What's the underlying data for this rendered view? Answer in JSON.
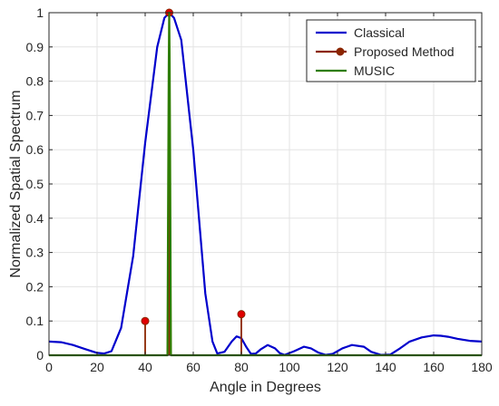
{
  "chart_data": {
    "type": "line",
    "xlabel": "Angle in Degrees",
    "ylabel": "Normalized Spatial Spectrum",
    "xlim": [
      0,
      180
    ],
    "ylim": [
      0,
      1
    ],
    "xticks": [
      "0",
      "20",
      "40",
      "60",
      "80",
      "100",
      "120",
      "140",
      "160",
      "180"
    ],
    "yticks": [
      "0",
      "0.1",
      "0.2",
      "0.3",
      "0.4",
      "0.5",
      "0.6",
      "0.7",
      "0.8",
      "0.9",
      "1"
    ],
    "grid": true,
    "legend_position": "top-right",
    "series": [
      {
        "name": "Classical",
        "kind": "line",
        "color": "#0000cc",
        "x": [
          0,
          5,
          10,
          15,
          20,
          23,
          26,
          30,
          35,
          40,
          45,
          48,
          50,
          52,
          55,
          60,
          65,
          68,
          70,
          73,
          76,
          78,
          80,
          82,
          84,
          86,
          88,
          91,
          94,
          96,
          98,
          102,
          106,
          109,
          112,
          115,
          118,
          122,
          126,
          131,
          134,
          138,
          142,
          146,
          150,
          155,
          160,
          163,
          166,
          170,
          175,
          180
        ],
        "y": [
          0.04,
          0.038,
          0.03,
          0.018,
          0.007,
          0.005,
          0.012,
          0.08,
          0.29,
          0.62,
          0.9,
          0.985,
          1.0,
          0.985,
          0.92,
          0.6,
          0.18,
          0.04,
          0.005,
          0.01,
          0.04,
          0.055,
          0.05,
          0.025,
          0.004,
          0.005,
          0.017,
          0.03,
          0.02,
          0.006,
          0.001,
          0.012,
          0.025,
          0.02,
          0.008,
          0.001,
          0.004,
          0.02,
          0.03,
          0.025,
          0.01,
          0.001,
          0.002,
          0.02,
          0.04,
          0.052,
          0.058,
          0.057,
          0.054,
          0.048,
          0.042,
          0.04
        ]
      },
      {
        "name": "Proposed Method",
        "kind": "stem",
        "color": "#8b2500",
        "x": [
          40,
          50,
          80
        ],
        "y": [
          0.1,
          1.0,
          0.12
        ]
      },
      {
        "name": "MUSIC",
        "kind": "line",
        "color": "#2e7d00",
        "x": [
          0,
          49.3,
          49.5,
          49.8,
          50,
          50.2,
          50.5,
          50.7,
          180
        ],
        "y": [
          0,
          0,
          0.4,
          0.85,
          1.0,
          0.85,
          0.4,
          0,
          0
        ]
      }
    ]
  }
}
